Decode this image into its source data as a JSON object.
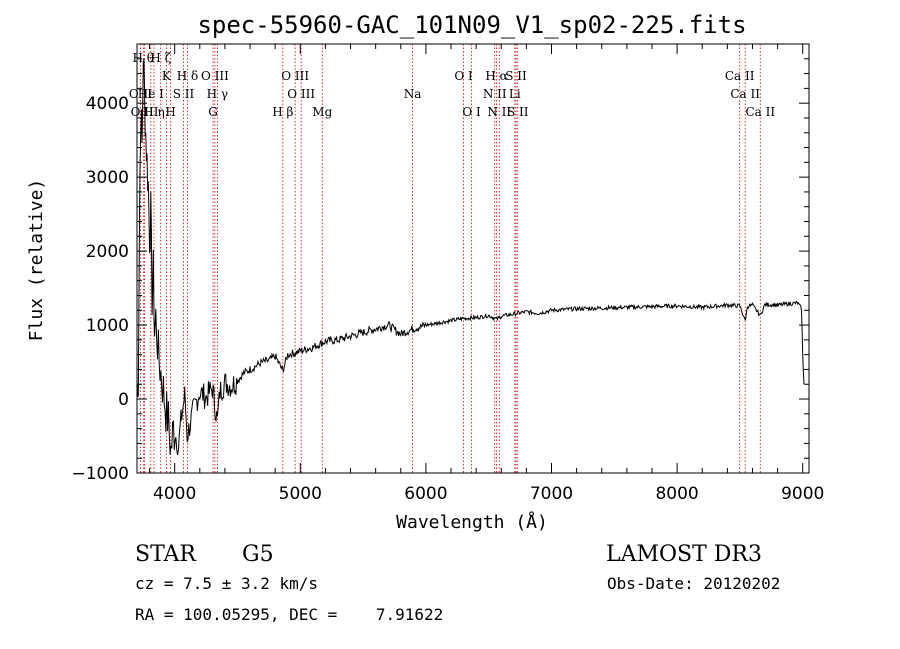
{
  "chart_data": {
    "type": "line",
    "title": "spec-55960-GAC_101N09_V1_sp02-225.fits",
    "xlabel": "Wavelength (Å)",
    "ylabel": "Flux (relative)",
    "xlim": [
      3700,
      9050
    ],
    "ylim": [
      -1000,
      4800
    ],
    "xticks": [
      4000,
      5000,
      6000,
      7000,
      8000,
      9000
    ],
    "yticks": [
      -1000,
      0,
      1000,
      2000,
      3000,
      4000
    ],
    "grid": false,
    "series": [
      {
        "name": "flux",
        "x": [
          3700,
          3710,
          3720,
          3730,
          3740,
          3750,
          3760,
          3770,
          3780,
          3790,
          3800,
          3810,
          3820,
          3830,
          3840,
          3850,
          3870,
          3890,
          3910,
          3930,
          3950,
          3970,
          3990,
          4010,
          4030,
          4050,
          4080,
          4100,
          4150,
          4200,
          4250,
          4300,
          4340,
          4360,
          4400,
          4450,
          4500,
          4550,
          4600,
          4650,
          4700,
          4750,
          4800,
          4861,
          4900,
          4950,
          5000,
          5100,
          5200,
          5300,
          5400,
          5500,
          5600,
          5700,
          5800,
          5900,
          6000,
          6100,
          6200,
          6300,
          6400,
          6500,
          6563,
          6600,
          6700,
          6800,
          6900,
          7000,
          7200,
          7400,
          7600,
          7800,
          8000,
          8200,
          8400,
          8500,
          8542,
          8560,
          8600,
          8662,
          8700,
          8800,
          8900,
          8960,
          8990,
          9000,
          9010
        ],
        "y": [
          0,
          300,
          2500,
          3900,
          3400,
          4700,
          4100,
          3600,
          3200,
          2900,
          2200,
          2500,
          1400,
          1700,
          900,
          1100,
          600,
          350,
          120,
          -150,
          -300,
          -700,
          -400,
          -500,
          -650,
          -300,
          50,
          -500,
          -150,
          100,
          20,
          150,
          -300,
          100,
          220,
          180,
          250,
          350,
          400,
          450,
          500,
          520,
          580,
          380,
          600,
          620,
          650,
          700,
          780,
          800,
          850,
          900,
          950,
          1000,
          880,
          950,
          1000,
          1030,
          1060,
          1090,
          1100,
          1130,
          1080,
          1120,
          1150,
          1180,
          1160,
          1200,
          1220,
          1230,
          1240,
          1250,
          1260,
          1240,
          1270,
          1260,
          1060,
          1250,
          1270,
          1130,
          1280,
          1270,
          1290,
          1300,
          1220,
          600,
          200
        ]
      }
    ],
    "spectral_lines": [
      {
        "label": "O II",
        "wavelength": 3727,
        "row": 2
      },
      {
        "label": "H θ",
        "wavelength": 3750,
        "row": 0
      },
      {
        "label": "O III",
        "wavelength": 3760,
        "row": 3
      },
      {
        "label": "H η",
        "wavelength": 3835,
        "row": 3
      },
      {
        "label": "He I",
        "wavelength": 3810,
        "row": 2
      },
      {
        "label": "H ζ",
        "wavelength": 3889,
        "row": 0
      },
      {
        "label": "K",
        "wavelength": 3934,
        "row": 1
      },
      {
        "label": "S II",
        "wavelength": 4070,
        "row": 2
      },
      {
        "label": "H",
        "wavelength": 3968,
        "row": 3
      },
      {
        "label": "H δ",
        "wavelength": 4102,
        "row": 1
      },
      {
        "label": "O III",
        "wavelength": 4320,
        "row": 1
      },
      {
        "label": "H γ",
        "wavelength": 4340,
        "row": 2
      },
      {
        "label": "G",
        "wavelength": 4305,
        "row": 3
      },
      {
        "label": "O III",
        "wavelength": 4959,
        "row": 1
      },
      {
        "label": "O III",
        "wavelength": 5007,
        "row": 2
      },
      {
        "label": "H β",
        "wavelength": 4861,
        "row": 3
      },
      {
        "label": "Mg",
        "wavelength": 5175,
        "row": 3
      },
      {
        "label": "Na",
        "wavelength": 5894,
        "row": 2
      },
      {
        "label": "O I",
        "wavelength": 6300,
        "row": 1
      },
      {
        "label": "O I",
        "wavelength": 6364,
        "row": 3
      },
      {
        "label": "H α",
        "wavelength": 6563,
        "row": 1
      },
      {
        "label": "N II",
        "wavelength": 6548,
        "row": 2
      },
      {
        "label": "N II",
        "wavelength": 6584,
        "row": 3
      },
      {
        "label": "S II",
        "wavelength": 6717,
        "row": 1
      },
      {
        "label": "Li",
        "wavelength": 6708,
        "row": 2
      },
      {
        "label": "S II",
        "wavelength": 6731,
        "row": 3
      },
      {
        "label": "Ca II",
        "wavelength": 8498,
        "row": 1
      },
      {
        "label": "Ca II",
        "wavelength": 8542,
        "row": 2
      },
      {
        "label": "Ca II",
        "wavelength": 8662,
        "row": 3
      }
    ]
  },
  "info": {
    "class": "STAR",
    "subclass": "G5",
    "survey": "LAMOST DR3",
    "cz": "cz = 7.5 ± 3.2 km/s",
    "obs_date": "Obs-Date: 20120202",
    "radec": "RA = 100.05295, DEC =    7.91622"
  },
  "colors": {
    "line_marker": "#cc0000",
    "spectrum": "#000000",
    "axes": "#000000"
  }
}
